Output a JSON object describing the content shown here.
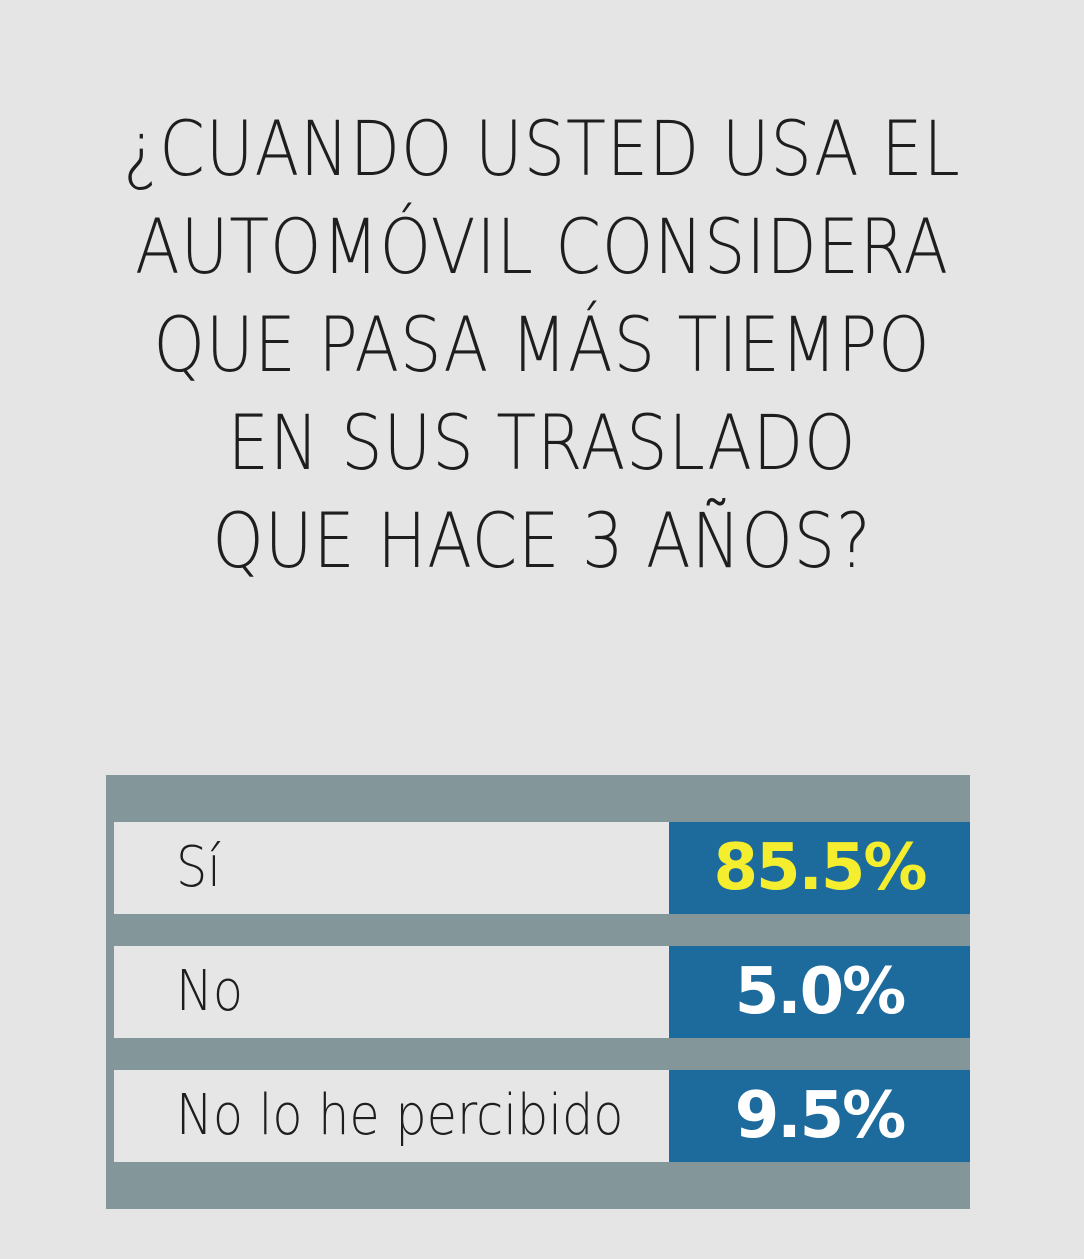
{
  "question": {
    "lines": [
      "¿CUANDO USTED USA EL",
      "AUTOMÓVIL CONSIDERA",
      "QUE PASA MÁS TIEMPO",
      "EN SUS TRASLADO",
      "QUE HACE 3 AÑOS?"
    ]
  },
  "chart_data": {
    "type": "table",
    "title": "¿CUANDO USTED USA EL AUTOMÓVIL CONSIDERA QUE PASA MÁS TIEMPO EN SUS TRASLADO QUE HACE 3 AÑOS?",
    "categories": [
      "Sí",
      "No",
      "No lo he percibido"
    ],
    "values": [
      85.5,
      5.0,
      9.5
    ],
    "value_labels": [
      "85.5%",
      "5.0%",
      "9.5%"
    ],
    "unit": "%",
    "highlight_index": 0
  },
  "colors": {
    "background": "#e5e5e5",
    "frame": "#83979a",
    "label_cell": "#e6e6e6",
    "value_cell": "#1d6a9c",
    "value_text": "#ffffff",
    "highlight_text": "#f4ee2e"
  }
}
